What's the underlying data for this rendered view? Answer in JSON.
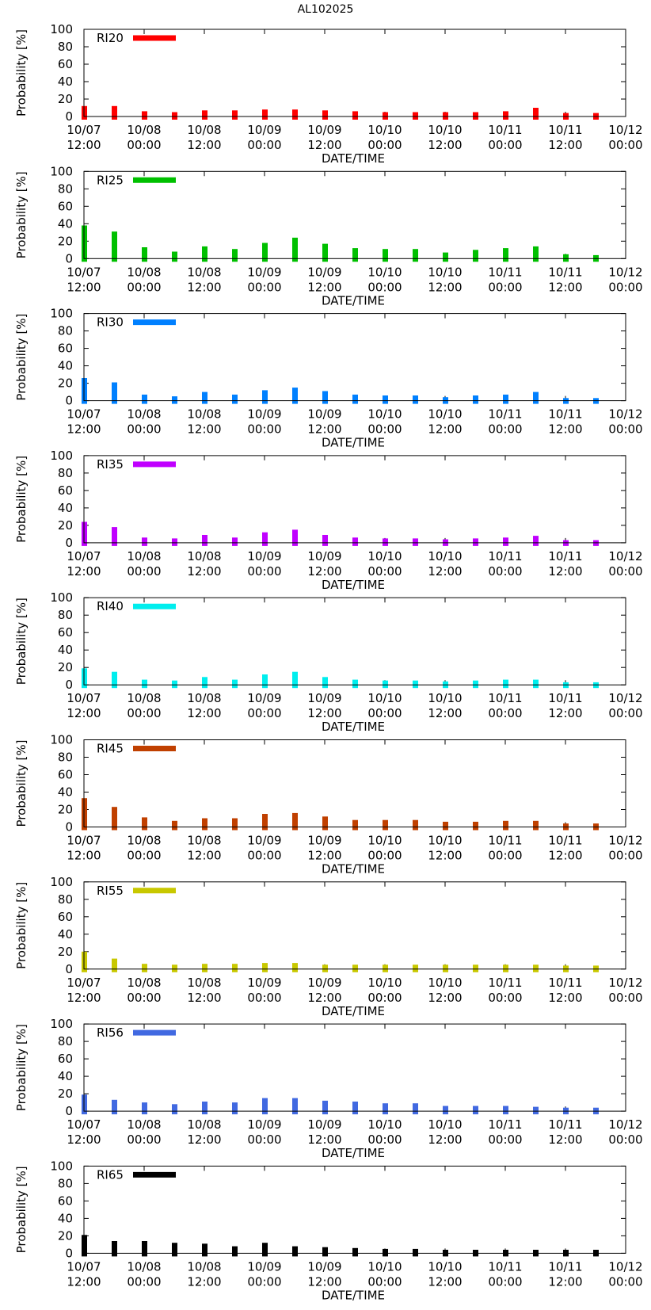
{
  "figure_title": "AL102025",
  "chart_data": [
    {
      "type": "bar",
      "legend": "RI20",
      "color": "#ff0000",
      "ylabel": "Probability [%]",
      "xlabel": "DATE/TIME",
      "ylim": [
        0,
        100
      ],
      "yticks": [
        0,
        20,
        40,
        60,
        80,
        100
      ],
      "x": [
        0,
        6,
        12,
        18,
        24,
        30,
        36,
        42,
        48,
        54,
        60,
        66,
        72,
        78,
        84,
        90,
        96,
        102
      ],
      "values": [
        12,
        12,
        6,
        5,
        7,
        7,
        8,
        8,
        7,
        6,
        5,
        5,
        5,
        5,
        6,
        10,
        4,
        4
      ]
    },
    {
      "type": "bar",
      "legend": "RI25",
      "color": "#00c000",
      "ylabel": "Probability [%]",
      "xlabel": "DATE/TIME",
      "ylim": [
        0,
        100
      ],
      "yticks": [
        0,
        20,
        40,
        60,
        80,
        100
      ],
      "x": [
        0,
        6,
        12,
        18,
        24,
        30,
        36,
        42,
        48,
        54,
        60,
        66,
        72,
        78,
        84,
        90,
        96,
        102
      ],
      "values": [
        38,
        31,
        13,
        8,
        14,
        11,
        18,
        24,
        17,
        12,
        11,
        11,
        7,
        10,
        12,
        14,
        5,
        4
      ]
    },
    {
      "type": "bar",
      "legend": "RI30",
      "color": "#0080ff",
      "ylabel": "Probability [%]",
      "xlabel": "DATE/TIME",
      "ylim": [
        0,
        100
      ],
      "yticks": [
        0,
        20,
        40,
        60,
        80,
        100
      ],
      "x": [
        0,
        6,
        12,
        18,
        24,
        30,
        36,
        42,
        48,
        54,
        60,
        66,
        72,
        78,
        84,
        90,
        96,
        102
      ],
      "values": [
        26,
        21,
        7,
        5,
        10,
        7,
        12,
        15,
        11,
        7,
        6,
        6,
        4,
        6,
        7,
        10,
        3,
        3
      ]
    },
    {
      "type": "bar",
      "legend": "RI35",
      "color": "#c000ff",
      "ylabel": "Probability [%]",
      "xlabel": "DATE/TIME",
      "ylim": [
        0,
        100
      ],
      "yticks": [
        0,
        20,
        40,
        60,
        80,
        100
      ],
      "x": [
        0,
        6,
        12,
        18,
        24,
        30,
        36,
        42,
        48,
        54,
        60,
        66,
        72,
        78,
        84,
        90,
        96,
        102
      ],
      "values": [
        24,
        18,
        6,
        5,
        9,
        6,
        12,
        15,
        9,
        6,
        5,
        5,
        4,
        5,
        6,
        8,
        3,
        3
      ]
    },
    {
      "type": "bar",
      "legend": "RI40",
      "color": "#00eeee",
      "ylabel": "Probability [%]",
      "xlabel": "DATE/TIME",
      "ylim": [
        0,
        100
      ],
      "yticks": [
        0,
        20,
        40,
        60,
        80,
        100
      ],
      "x": [
        0,
        6,
        12,
        18,
        24,
        30,
        36,
        42,
        48,
        54,
        60,
        66,
        72,
        78,
        84,
        90,
        96,
        102
      ],
      "values": [
        19,
        15,
        6,
        5,
        9,
        6,
        12,
        15,
        9,
        6,
        5,
        5,
        4,
        5,
        6,
        6,
        3,
        3
      ]
    },
    {
      "type": "bar",
      "legend": "RI45",
      "color": "#c04000",
      "ylabel": "Probability [%]",
      "xlabel": "DATE/TIME",
      "ylim": [
        0,
        100
      ],
      "yticks": [
        0,
        20,
        40,
        60,
        80,
        100
      ],
      "x": [
        0,
        6,
        12,
        18,
        24,
        30,
        36,
        42,
        48,
        54,
        60,
        66,
        72,
        78,
        84,
        90,
        96,
        102
      ],
      "values": [
        33,
        23,
        11,
        7,
        10,
        10,
        15,
        16,
        12,
        8,
        8,
        8,
        6,
        6,
        7,
        7,
        4,
        4
      ]
    },
    {
      "type": "bar",
      "legend": "RI55",
      "color": "#c8c800",
      "ylabel": "Probability [%]",
      "xlabel": "DATE/TIME",
      "ylim": [
        0,
        100
      ],
      "yticks": [
        0,
        20,
        40,
        60,
        80,
        100
      ],
      "x": [
        0,
        6,
        12,
        18,
        24,
        30,
        36,
        42,
        48,
        54,
        60,
        66,
        72,
        78,
        84,
        90,
        96,
        102
      ],
      "values": [
        20,
        12,
        6,
        5,
        6,
        6,
        7,
        7,
        5,
        5,
        5,
        5,
        5,
        5,
        5,
        5,
        4,
        4
      ]
    },
    {
      "type": "bar",
      "legend": "RI56",
      "color": "#4169e1",
      "ylabel": "Probability [%]",
      "xlabel": "DATE/TIME",
      "ylim": [
        0,
        100
      ],
      "yticks": [
        0,
        20,
        40,
        60,
        80,
        100
      ],
      "x": [
        0,
        6,
        12,
        18,
        24,
        30,
        36,
        42,
        48,
        54,
        60,
        66,
        72,
        78,
        84,
        90,
        96,
        102
      ],
      "values": [
        19,
        13,
        10,
        8,
        11,
        10,
        15,
        15,
        12,
        11,
        9,
        9,
        6,
        6,
        6,
        5,
        4,
        4
      ]
    },
    {
      "type": "bar",
      "legend": "RI65",
      "color": "#000000",
      "ylabel": "Probability [%]",
      "xlabel": "DATE/TIME",
      "ylim": [
        0,
        100
      ],
      "yticks": [
        0,
        20,
        40,
        60,
        80,
        100
      ],
      "x": [
        0,
        6,
        12,
        18,
        24,
        30,
        36,
        42,
        48,
        54,
        60,
        66,
        72,
        78,
        84,
        90,
        96,
        102
      ],
      "values": [
        21,
        14,
        14,
        12,
        11,
        8,
        12,
        8,
        7,
        6,
        5,
        5,
        4,
        4,
        4,
        4,
        4,
        4
      ]
    }
  ],
  "x_axis": {
    "range_hours": [
      0,
      108
    ],
    "ticks": [
      {
        "hour": 0,
        "line1": "10/07",
        "line2": "12:00"
      },
      {
        "hour": 12,
        "line1": "10/08",
        "line2": "00:00"
      },
      {
        "hour": 24,
        "line1": "10/08",
        "line2": "12:00"
      },
      {
        "hour": 36,
        "line1": "10/09",
        "line2": "00:00"
      },
      {
        "hour": 48,
        "line1": "10/09",
        "line2": "12:00"
      },
      {
        "hour": 60,
        "line1": "10/10",
        "line2": "00:00"
      },
      {
        "hour": 72,
        "line1": "10/10",
        "line2": "12:00"
      },
      {
        "hour": 84,
        "line1": "10/11",
        "line2": "00:00"
      },
      {
        "hour": 96,
        "line1": "10/11",
        "line2": "12:00"
      },
      {
        "hour": 108,
        "line1": "10/12",
        "line2": "00:00"
      }
    ]
  }
}
